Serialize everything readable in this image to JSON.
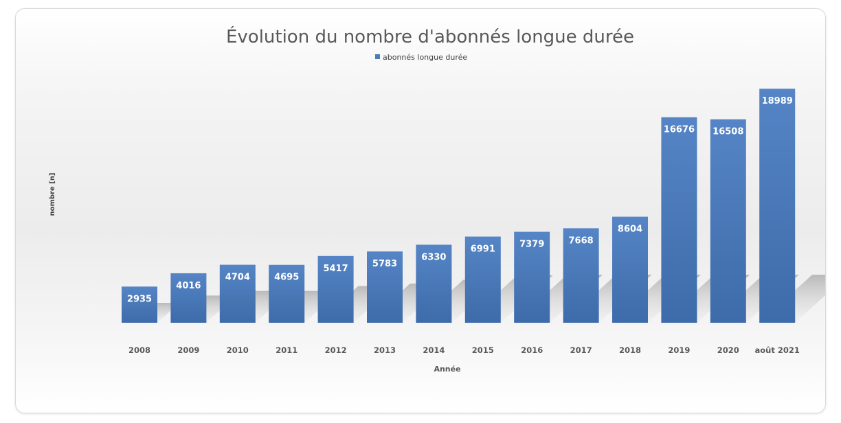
{
  "chart_data": {
    "type": "bar",
    "title": "Évolution du nombre d'abonnés longue durée",
    "legend": "abonnés longue durée",
    "legend_position": "top",
    "xlabel": "Année",
    "ylabel": "nombre [n]",
    "categories": [
      "2008",
      "2009",
      "2010",
      "2011",
      "2012",
      "2013",
      "2014",
      "2015",
      "2016",
      "2017",
      "2018",
      "2019",
      "2020",
      "août 2021"
    ],
    "series": [
      {
        "name": "abonnés longue durée",
        "values": [
          2935,
          4016,
          4704,
          4695,
          5417,
          5783,
          6330,
          6991,
          7379,
          7668,
          8604,
          16676,
          16508,
          18989
        ],
        "color": "#4a7ebb"
      }
    ],
    "ylim": [
      0,
      19000
    ],
    "grid": false
  }
}
